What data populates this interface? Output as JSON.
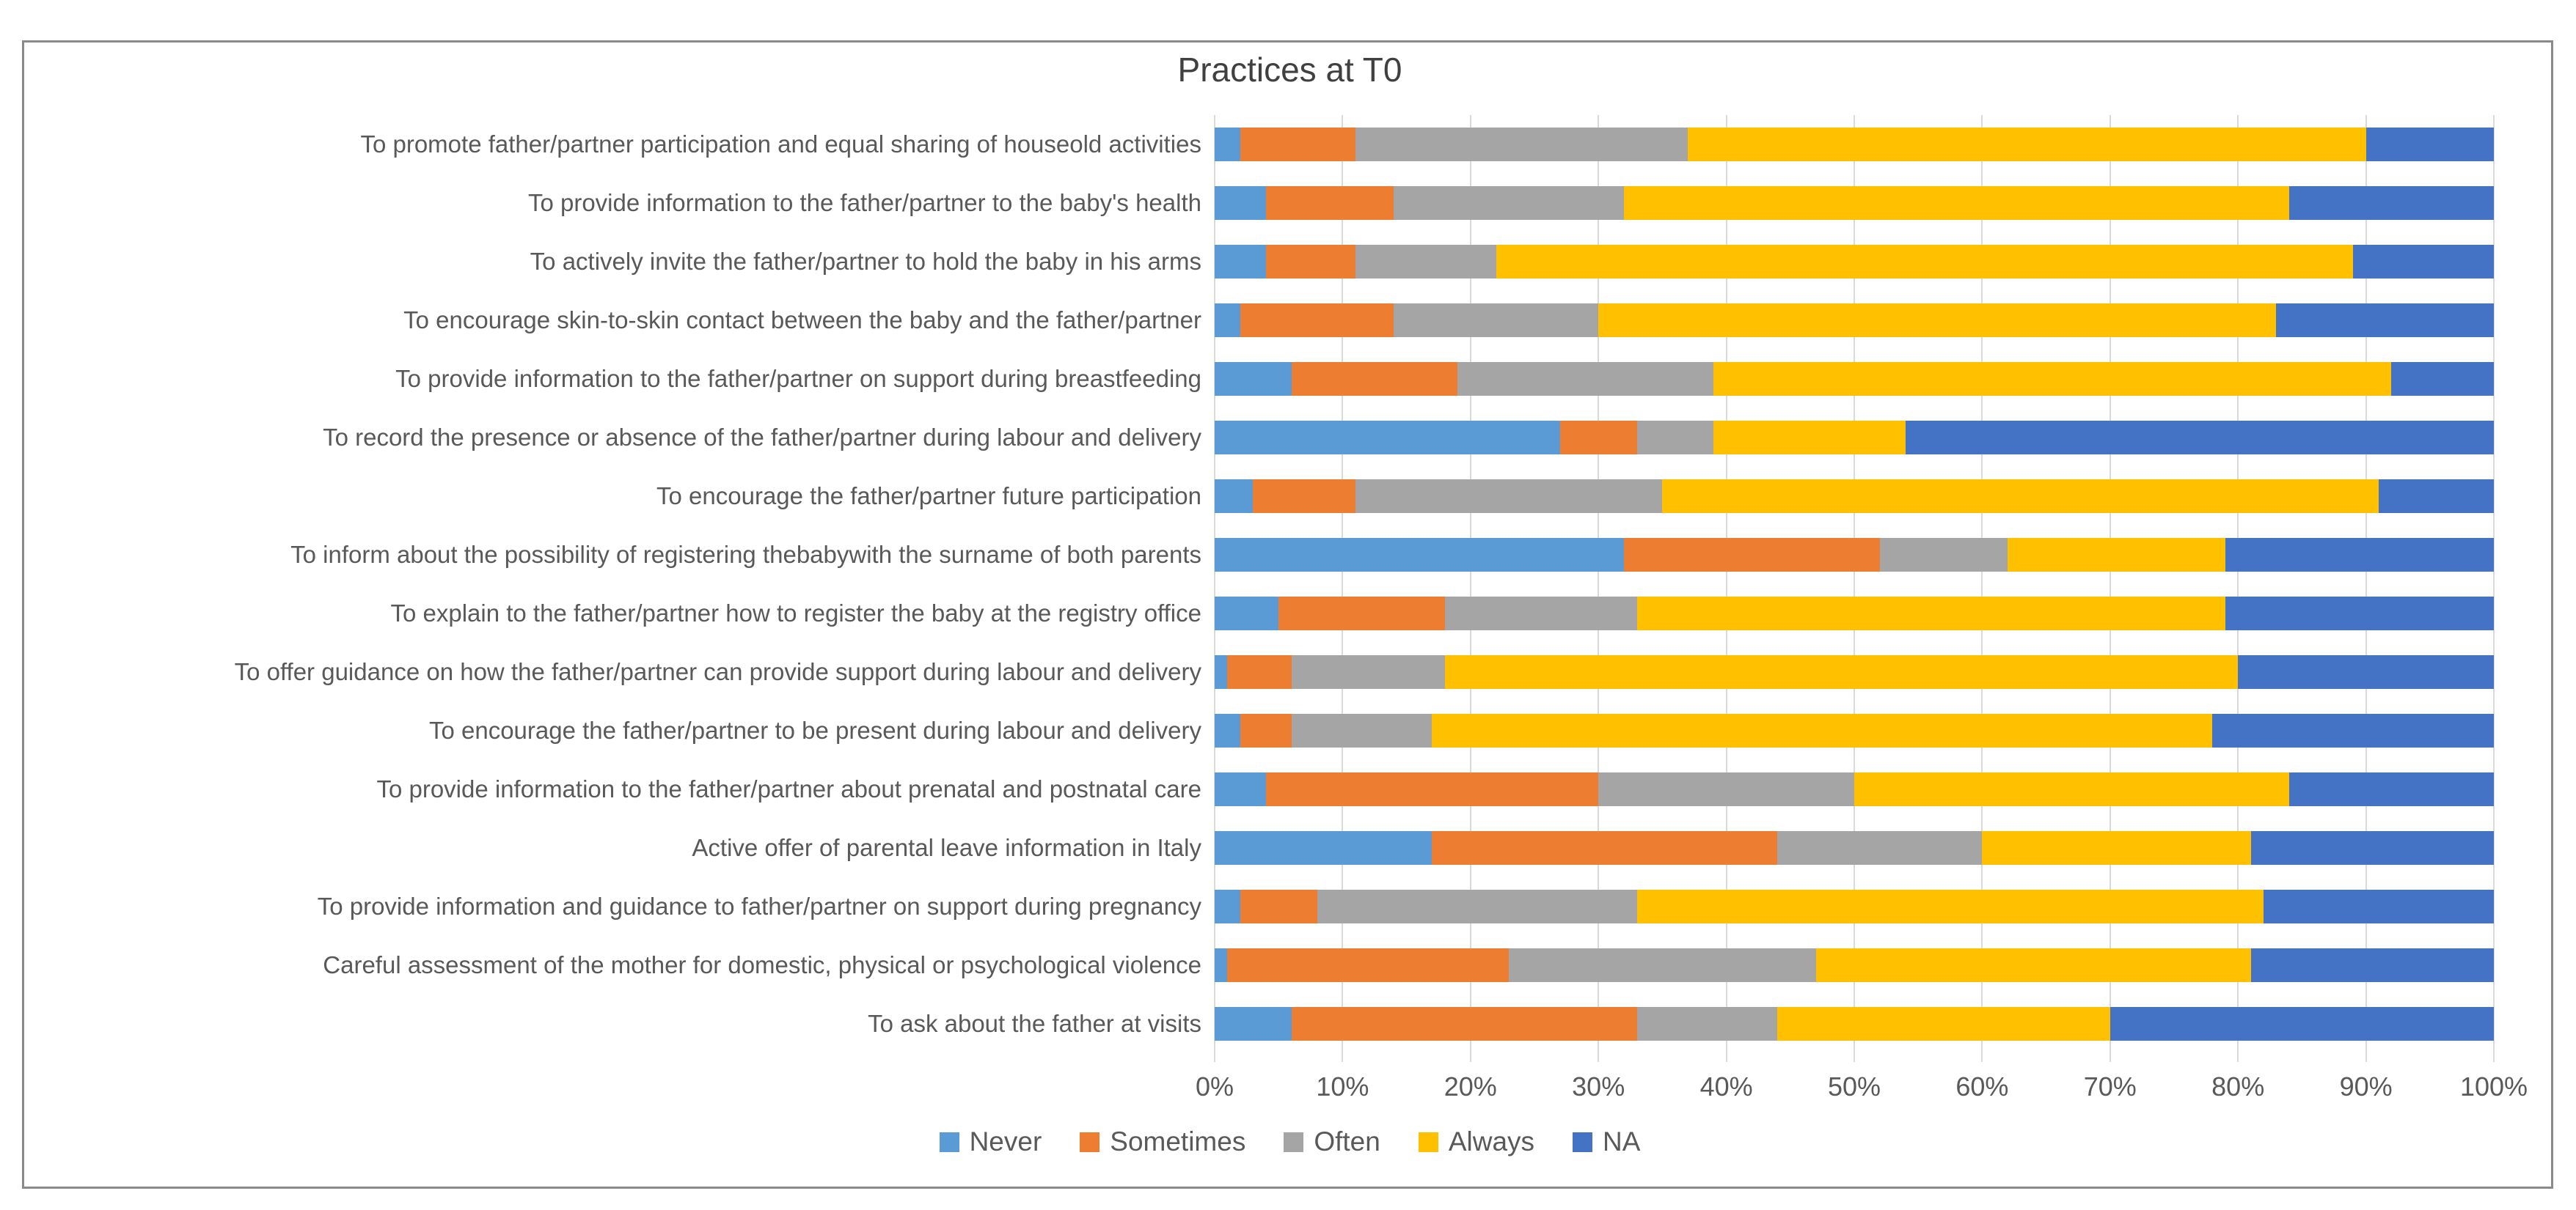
{
  "chart_data": {
    "type": "bar",
    "orientation": "horizontal",
    "stacked": true,
    "stacked_total_percent": 100,
    "title": "Practices at T0",
    "legend_position": "bottom",
    "x_axis": {
      "range": [
        0,
        100
      ],
      "unit": "%",
      "grid": true,
      "ticks": [
        "0%",
        "10%",
        "20%",
        "30%",
        "40%",
        "50%",
        "60%",
        "70%",
        "80%",
        "90%",
        "100%"
      ]
    },
    "categories": [
      "To promote father/partner participation and equal sharing of houseold activities",
      "To provide information to the father/partner to the baby's health",
      "To actively invite the father/partner to hold the baby in his arms",
      "To encourage skin-to-skin contact between the baby and the father/partner",
      "To provide information to the father/partner on support during breastfeeding",
      "To record the presence or absence of the father/partner during labour and delivery",
      "To encourage the father/partner future participation",
      "To inform about the possibility of registering thebabywith the surname of both parents",
      "To explain to the father/partner how to register the baby at the registry office",
      "To offer guidance on how the father/partner can provide support during labour and delivery",
      "To encourage the father/partner to be present during labour and delivery",
      "To provide information to the father/partner about prenatal and postnatal care",
      "Active offer of parental leave information in Italy",
      "To provide information and guidance to father/partner on support during pregnancy",
      "Careful assessment of the mother for domestic, physical or psychological violence",
      "To ask about the father at visits"
    ],
    "series": [
      {
        "name": "Never",
        "color": "#5B9BD5",
        "values": [
          2,
          4,
          4,
          2,
          6,
          27,
          3,
          32,
          5,
          1,
          2,
          4,
          17,
          2,
          1,
          6
        ]
      },
      {
        "name": "Sometimes",
        "color": "#ED7D31",
        "values": [
          9,
          10,
          7,
          12,
          13,
          6,
          8,
          20,
          13,
          5,
          4,
          26,
          27,
          6,
          22,
          27
        ]
      },
      {
        "name": "Often",
        "color": "#A5A5A5",
        "values": [
          26,
          18,
          11,
          16,
          20,
          6,
          24,
          10,
          15,
          12,
          11,
          20,
          16,
          25,
          24,
          11
        ]
      },
      {
        "name": "Always",
        "color": "#FFC000",
        "values": [
          53,
          52,
          67,
          53,
          53,
          15,
          56,
          17,
          46,
          62,
          61,
          34,
          21,
          49,
          34,
          26
        ]
      },
      {
        "name": "NA",
        "color": "#4472C4",
        "values": [
          10,
          16,
          11,
          17,
          8,
          46,
          9,
          21,
          21,
          20,
          22,
          16,
          19,
          18,
          19,
          30
        ]
      }
    ]
  },
  "colors": {
    "background": "#FFFFFF",
    "figure_border": "#8A8A8A",
    "gridline": "#D9D9D9",
    "axis_text": "#595959",
    "title_text": "#404040"
  }
}
